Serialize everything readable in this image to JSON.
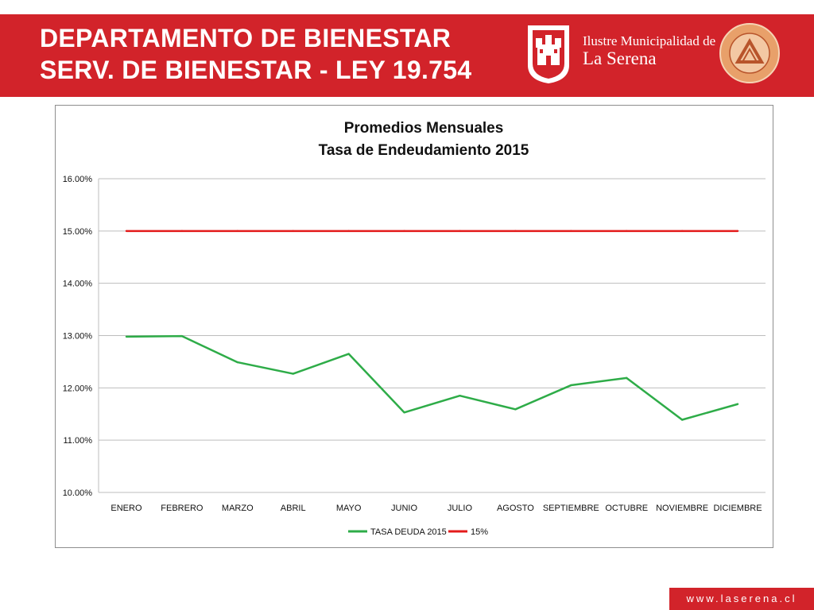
{
  "header": {
    "title_line1": "DEPARTAMENTO DE BIENESTAR",
    "title_line2": "SERV. DE BIENESTAR - LEY 19.754",
    "municipality_line1": "Ilustre Municipalidad de",
    "municipality_line2": "La Serena"
  },
  "footer": {
    "url": "www.laserena.cl"
  },
  "colors": {
    "brand_red": "#d2232a",
    "series_green": "#2eac48",
    "series_red": "#e31b1b",
    "grid": "#bdbdbd"
  },
  "chart_data": {
    "type": "line",
    "title_line1": "Promedios Mensuales",
    "title_line2": "Tasa de Endeudamiento 2015",
    "categories": [
      "ENERO",
      "FEBRERO",
      "MARZO",
      "ABRIL",
      "MAYO",
      "JUNIO",
      "JULIO",
      "AGOSTO",
      "SEPTIEMBRE",
      "OCTUBRE",
      "NOVIEMBRE",
      "DICIEMBRE"
    ],
    "series": [
      {
        "name": "TASA DEUDA 2015",
        "color": "#2eac48",
        "values": [
          12.98,
          12.99,
          12.49,
          12.27,
          12.65,
          11.53,
          11.85,
          11.59,
          12.05,
          12.19,
          11.39,
          11.69
        ]
      },
      {
        "name": "15%",
        "color": "#e31b1b",
        "values": [
          15.0,
          15.0,
          15.0,
          15.0,
          15.0,
          15.0,
          15.0,
          15.0,
          15.0,
          15.0,
          15.0,
          15.0
        ]
      }
    ],
    "y_ticks": [
      "16.00%",
      "15.00%",
      "14.00%",
      "13.00%",
      "12.00%",
      "11.00%",
      "10.00%"
    ],
    "ylim": [
      10,
      16
    ],
    "grid": true,
    "legend_position": "bottom"
  }
}
